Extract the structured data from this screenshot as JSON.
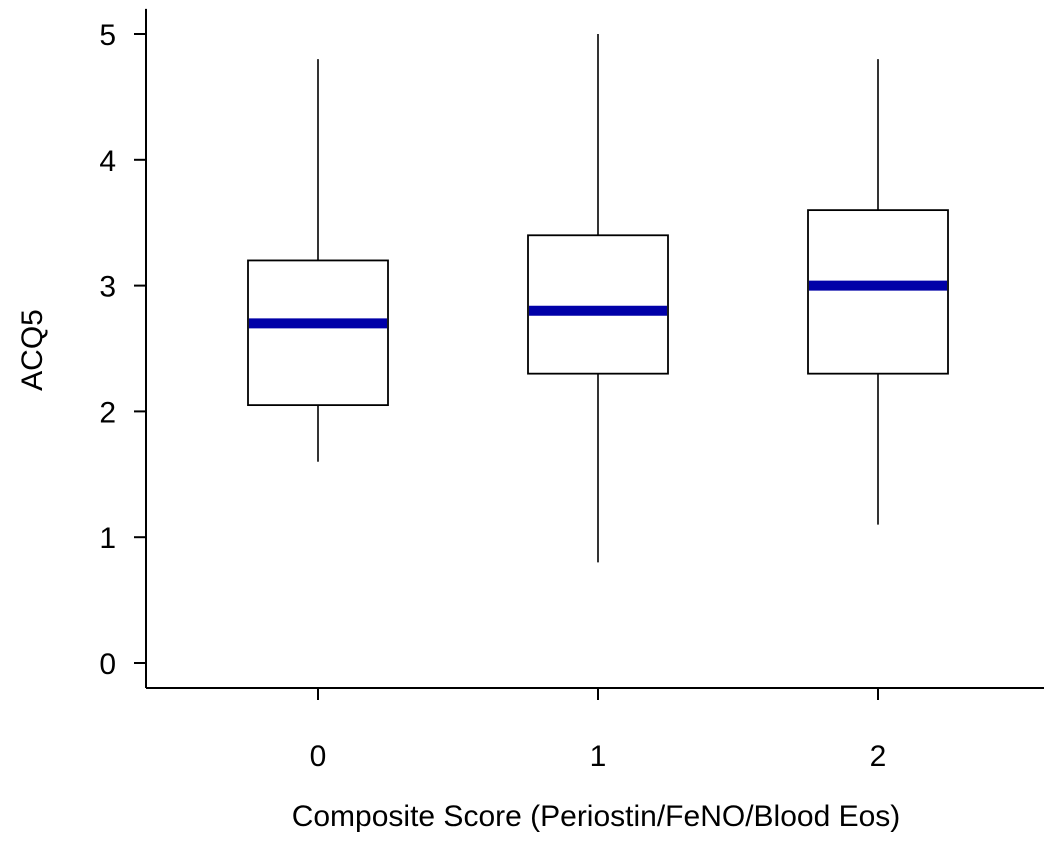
{
  "chart_data": {
    "type": "box",
    "title": "",
    "xlabel": "Composite Score (Periostin/FeNO/Blood Eos)",
    "ylabel": "ACQ5",
    "categories": [
      "0",
      "1",
      "2"
    ],
    "y_ticks": [
      "0",
      "1",
      "2",
      "3",
      "4",
      "5"
    ],
    "y_tick_values": [
      0,
      1,
      2,
      3,
      4,
      5
    ],
    "ylim": [
      -0.2,
      5.2
    ],
    "boxes": [
      {
        "category": "0",
        "whisker_low": 1.6,
        "q1": 2.05,
        "median": 2.7,
        "q3": 3.2,
        "whisker_high": 4.8
      },
      {
        "category": "1",
        "whisker_low": 0.8,
        "q1": 2.3,
        "median": 2.8,
        "q3": 3.4,
        "whisker_high": 5.0
      },
      {
        "category": "2",
        "whisker_low": 1.1,
        "q1": 2.3,
        "median": 3.0,
        "q3": 3.6,
        "whisker_high": 4.8
      }
    ],
    "grid": false,
    "legend": "none",
    "colors": {
      "median": "#0000a8",
      "box_stroke": "#000000",
      "axis": "#000000"
    }
  }
}
